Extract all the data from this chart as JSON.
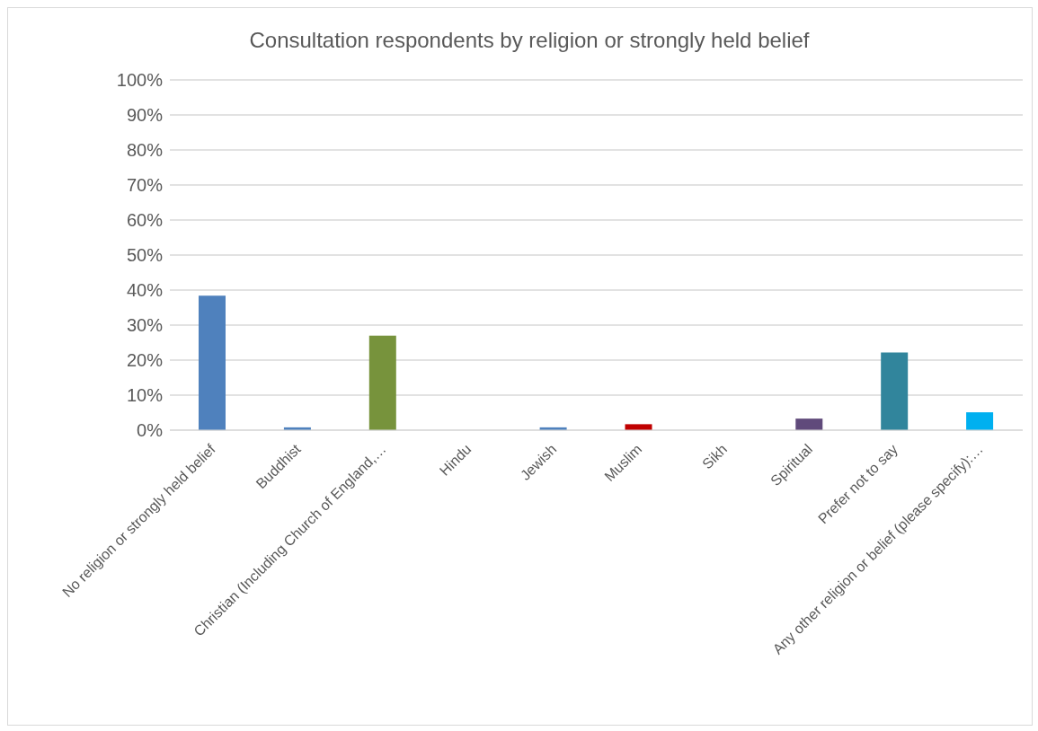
{
  "chart_data": {
    "type": "bar",
    "title": "Consultation respondents by religion or strongly held belief",
    "categories": [
      "No religion or strongly held belief",
      "Buddhist",
      "Christian (Including Church of England,…",
      "Hindu",
      "Jewish",
      "Muslim",
      "Sikh",
      "Spiritual",
      "Prefer not to say",
      "Any other religion or belief (please specify):…"
    ],
    "values": [
      38.4,
      0.8,
      27.0,
      0,
      0.8,
      1.7,
      0,
      3.3,
      22.2,
      5.1
    ],
    "colors": [
      "#4f81bd",
      "#4f81bd",
      "#77933c",
      "#4f81bd",
      "#4f81bd",
      "#c00000",
      "#4f81bd",
      "#604a7b",
      "#31859c",
      "#00b0f0"
    ],
    "ylim": [
      0,
      100
    ],
    "yticks": [
      {
        "value": 0,
        "label": "0%"
      },
      {
        "value": 10,
        "label": "10%"
      },
      {
        "value": 20,
        "label": "20%"
      },
      {
        "value": 30,
        "label": "30%"
      },
      {
        "value": 40,
        "label": "40%"
      },
      {
        "value": 50,
        "label": "50%"
      },
      {
        "value": 60,
        "label": "60%"
      },
      {
        "value": 70,
        "label": "70%"
      },
      {
        "value": 80,
        "label": "80%"
      },
      {
        "value": 90,
        "label": "90%"
      },
      {
        "value": 100,
        "label": "100%"
      }
    ],
    "grid": "y",
    "legend": false
  }
}
